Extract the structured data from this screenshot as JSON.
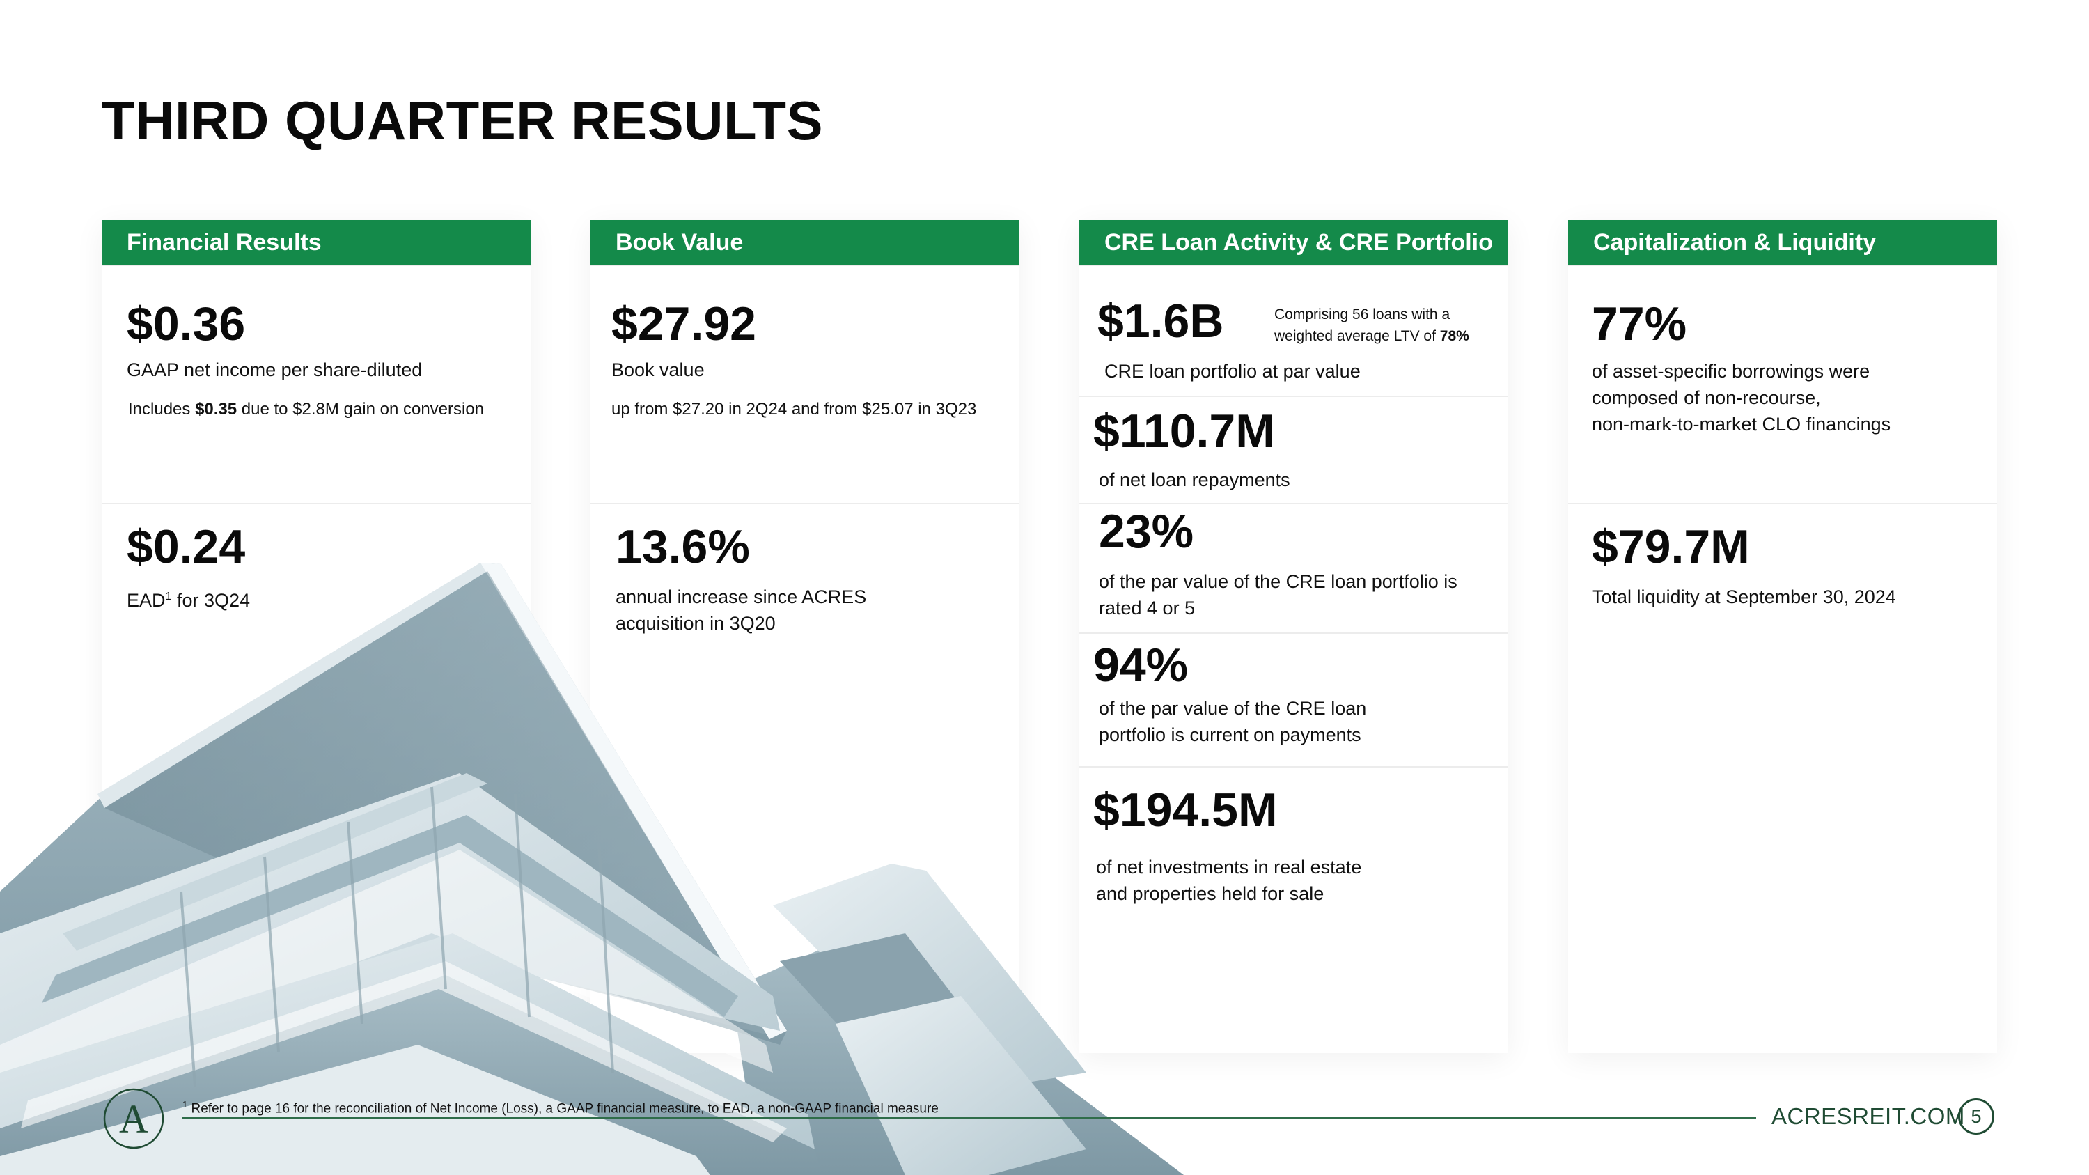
{
  "page": {
    "title": "THIRD QUARTER RESULTS"
  },
  "cards": {
    "financial": {
      "header": "Financial Results",
      "s1": {
        "value": "$0.36",
        "label": "GAAP net income per share-diluted",
        "note_pre": "Includes ",
        "note_bold": "$0.35",
        "note_post": " due to $2.8M gain on conversion"
      },
      "s2": {
        "value": "$0.24",
        "label_pre": "EAD",
        "label_sup": "1",
        "label_post": " for 3Q24"
      }
    },
    "book": {
      "header": "Book Value",
      "s1": {
        "value": "$27.92",
        "label": "Book value",
        "note": "up from $27.20 in 2Q24 and from $25.07 in 3Q23"
      },
      "s2": {
        "value": "13.6%",
        "label_line1": "annual increase since ACRES",
        "label_line2": "acquisition in 3Q20"
      }
    },
    "cre": {
      "header": "CRE Loan Activity & CRE Portfolio",
      "s1": {
        "value": "$1.6B",
        "side_line1": "Comprising 56 loans with a",
        "side_line2_pre": "weighted average LTV of ",
        "side_line2_bold": "78%",
        "label": "CRE loan portfolio at par value"
      },
      "s2": {
        "value": "$110.7M",
        "label": "of net loan repayments"
      },
      "s3": {
        "value": "23%",
        "label_line1": "of the par value of the CRE loan portfolio is",
        "label_line2": "rated 4 or 5"
      },
      "s4": {
        "value": "94%",
        "label_line1": "of the par value of the CRE loan",
        "label_line2": "portfolio is current on payments"
      },
      "s5": {
        "value": "$194.5M",
        "label_line1": "of net investments in real estate",
        "label_line2": "and properties held for sale"
      }
    },
    "capital": {
      "header": "Capitalization & Liquidity",
      "s1": {
        "value": "77%",
        "label_line1": "of asset-specific borrowings were",
        "label_line2": "composed of non-recourse,",
        "label_line3": "non-mark-to-market CLO financings"
      },
      "s2": {
        "value": "$79.7M",
        "label": "Total liquidity at September 30, 2024"
      }
    }
  },
  "footer": {
    "footnote_sup": "1",
    "footnote": "Refer to page 16 for the reconciliation of Net Income (Loss), a GAAP financial measure, to EAD, a non-GAAP financial measure",
    "site": "ACRESREIT.COM",
    "page_number": "5",
    "logo_letter": "A"
  },
  "colors": {
    "brand_green": "#148a4a",
    "footer_green": "#1f4b33"
  }
}
